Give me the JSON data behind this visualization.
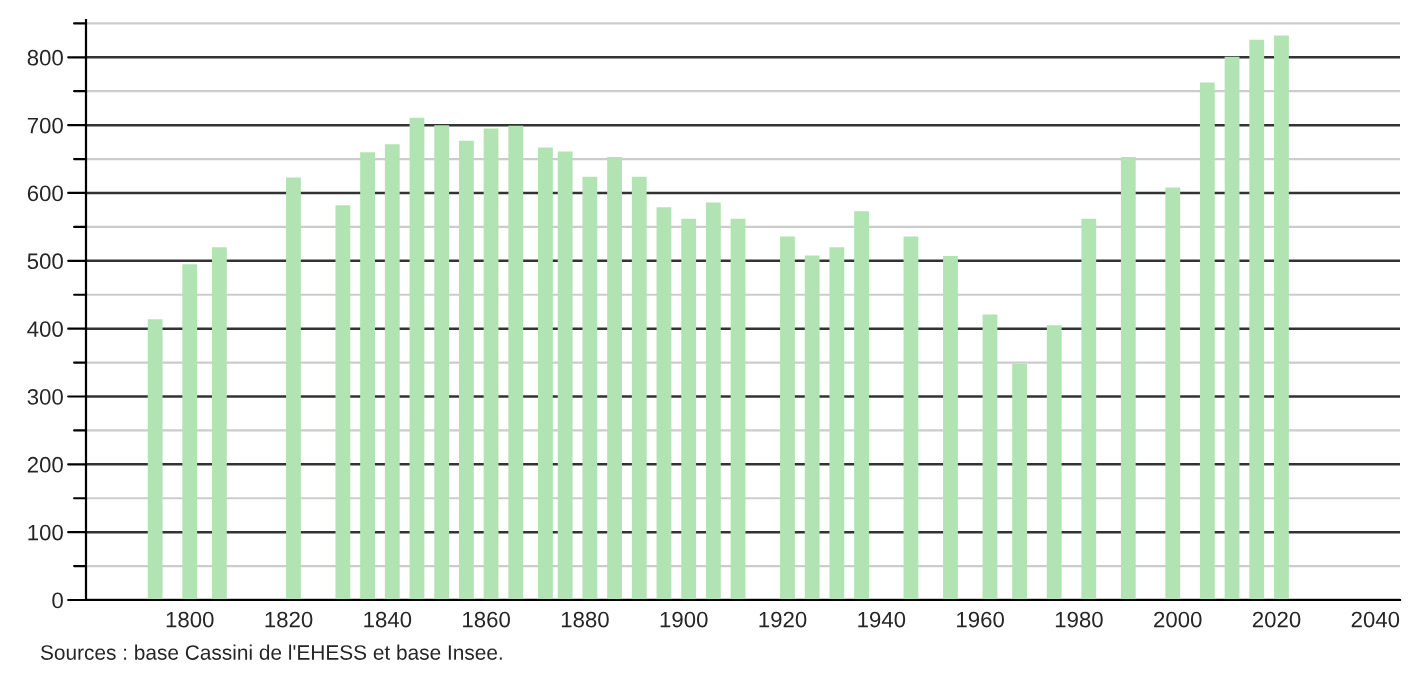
{
  "chart_data": {
    "type": "bar",
    "color": "#b2e3b2",
    "x": [
      1793,
      1800,
      1806,
      1821,
      1831,
      1836,
      1841,
      1846,
      1851,
      1856,
      1861,
      1866,
      1872,
      1876,
      1881,
      1886,
      1891,
      1896,
      1901,
      1906,
      1911,
      1921,
      1926,
      1931,
      1936,
      1946,
      1954,
      1962,
      1968,
      1975,
      1982,
      1990,
      1999,
      2006,
      2011,
      2016,
      2021
    ],
    "values": [
      414,
      495,
      520,
      623,
      582,
      660,
      672,
      711,
      700,
      677,
      695,
      699,
      667,
      661,
      624,
      653,
      624,
      579,
      562,
      586,
      562,
      536,
      508,
      520,
      573,
      536,
      507,
      421,
      348,
      405,
      562,
      653,
      608,
      763,
      801,
      826,
      832
    ],
    "xlim": [
      1779,
      2045
    ],
    "xticks": [
      1800,
      1820,
      1840,
      1860,
      1880,
      1900,
      1920,
      1940,
      1960,
      1980,
      2000,
      2020,
      2040
    ],
    "ylim": [
      0,
      855
    ],
    "yticks": [
      0,
      {
        "value": 50,
        "label": null
      },
      100,
      {
        "value": 150,
        "label": null
      },
      200,
      {
        "value": 250,
        "label": null
      },
      300,
      {
        "value": 350,
        "label": null
      },
      400,
      {
        "value": 450,
        "label": null
      },
      500,
      {
        "value": 550,
        "label": null
      },
      600,
      {
        "value": 650,
        "label": null
      },
      700,
      {
        "value": 750,
        "label": null
      },
      800,
      {
        "value": 850,
        "label": null
      }
    ],
    "grid": "y",
    "annotations": [
      "Sources : base Cassini de l'EHESS et base Insee."
    ]
  }
}
